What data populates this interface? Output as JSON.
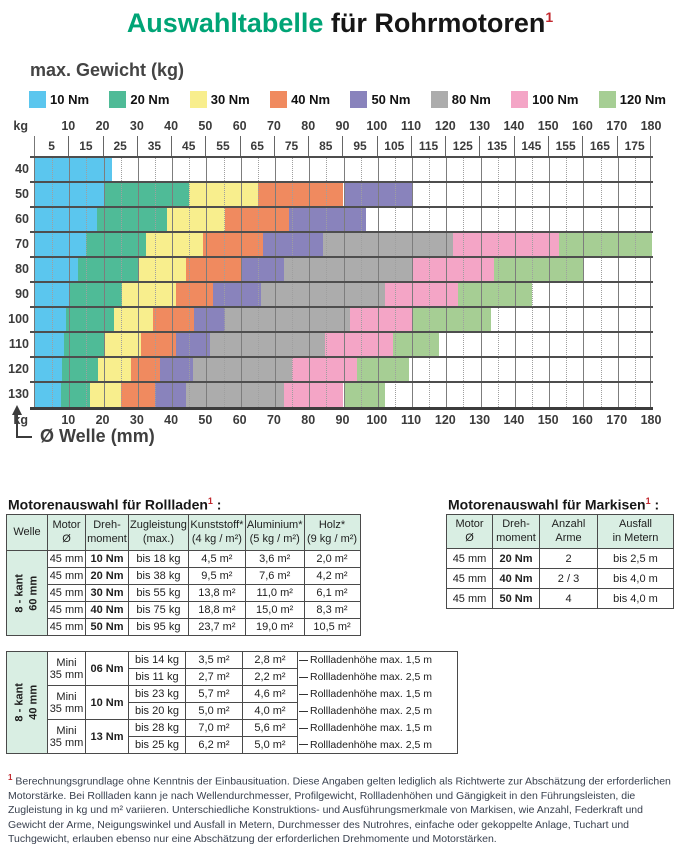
{
  "title": {
    "part1": "Auswahltabelle",
    "part2": " für Rohrmotoren",
    "footnote_mark": "1"
  },
  "subtitle": "max. Gewicht (kg)",
  "legend": [
    {
      "label": "10 Nm",
      "color": "#5bc6ee"
    },
    {
      "label": "20 Nm",
      "color": "#4fbb97"
    },
    {
      "label": "30 Nm",
      "color": "#f8ee8d"
    },
    {
      "label": "40 Nm",
      "color": "#f08a5f"
    },
    {
      "label": "50 Nm",
      "color": "#8983bc"
    },
    {
      "label": "80 Nm",
      "color": "#acacac"
    },
    {
      "label": "100 Nm",
      "color": "#f4a5c6"
    },
    {
      "label": "120 Nm",
      "color": "#a6ce94"
    }
  ],
  "chart_data": {
    "type": "heatmap",
    "description": "Max weight (kg) versus shaft diameter; colored bands give required motor torque",
    "x_axis": {
      "corner_label": "kg",
      "unit_label": "Ø Welle (mm)",
      "range": [
        0,
        180
      ],
      "ticks_major": [
        10,
        20,
        30,
        40,
        50,
        60,
        70,
        80,
        90,
        100,
        110,
        120,
        130,
        140,
        150,
        160,
        170,
        180
      ],
      "ticks_minor": [
        5,
        15,
        25,
        35,
        45,
        55,
        65,
        75,
        85,
        95,
        105,
        115,
        125,
        135,
        145,
        155,
        165,
        175
      ]
    },
    "y_axis": {
      "unit": "kg",
      "categories": [
        40,
        50,
        60,
        70,
        80,
        90,
        100,
        110,
        120,
        130
      ]
    },
    "torque_colors": {
      "10 Nm": "#5bc6ee",
      "20 Nm": "#4fbb97",
      "30 Nm": "#f8ee8d",
      "40 Nm": "#f08a5f",
      "50 Nm": "#8983bc",
      "80 Nm": "#acacac",
      "100 Nm": "#f4a5c6",
      "120 Nm": "#a6ce94"
    },
    "rows": [
      {
        "kg": 40,
        "segments": [
          {
            "torque": "10 Nm",
            "to": 22.5
          }
        ]
      },
      {
        "kg": 50,
        "segments": [
          {
            "torque": "10 Nm",
            "to": 20
          },
          {
            "torque": "20 Nm",
            "to": 45
          },
          {
            "torque": "30 Nm",
            "to": 65
          },
          {
            "torque": "40 Nm",
            "to": 90
          },
          {
            "torque": "50 Nm",
            "to": 110
          }
        ]
      },
      {
        "kg": 60,
        "segments": [
          {
            "torque": "10 Nm",
            "to": 18
          },
          {
            "torque": "20 Nm",
            "to": 38.5
          },
          {
            "torque": "30 Nm",
            "to": 55.5
          },
          {
            "torque": "40 Nm",
            "to": 74
          },
          {
            "torque": "50 Nm",
            "to": 96.5
          }
        ]
      },
      {
        "kg": 70,
        "segments": [
          {
            "torque": "10 Nm",
            "to": 15
          },
          {
            "torque": "20 Nm",
            "to": 32.5
          },
          {
            "torque": "30 Nm",
            "to": 49
          },
          {
            "torque": "40 Nm",
            "to": 66.5
          },
          {
            "torque": "50 Nm",
            "to": 84
          },
          {
            "torque": "80 Nm",
            "to": 122
          },
          {
            "torque": "100 Nm",
            "to": 153
          },
          {
            "torque": "120 Nm",
            "to": 180
          }
        ]
      },
      {
        "kg": 80,
        "segments": [
          {
            "torque": "10 Nm",
            "to": 12.5
          },
          {
            "torque": "20 Nm",
            "to": 30
          },
          {
            "torque": "30 Nm",
            "to": 44
          },
          {
            "torque": "40 Nm",
            "to": 60
          },
          {
            "torque": "50 Nm",
            "to": 72.5
          },
          {
            "torque": "80 Nm",
            "to": 110
          },
          {
            "torque": "100 Nm",
            "to": 134
          },
          {
            "torque": "120 Nm",
            "to": 160
          }
        ]
      },
      {
        "kg": 90,
        "segments": [
          {
            "torque": "10 Nm",
            "to": 10
          },
          {
            "torque": "20 Nm",
            "to": 25.5
          },
          {
            "torque": "30 Nm",
            "to": 41
          },
          {
            "torque": "40 Nm",
            "to": 52
          },
          {
            "torque": "50 Nm",
            "to": 66
          },
          {
            "torque": "80 Nm",
            "to": 102
          },
          {
            "torque": "100 Nm",
            "to": 123.5
          },
          {
            "torque": "120 Nm",
            "to": 145
          }
        ]
      },
      {
        "kg": 100,
        "segments": [
          {
            "torque": "10 Nm",
            "to": 9
          },
          {
            "torque": "20 Nm",
            "to": 23
          },
          {
            "torque": "30 Nm",
            "to": 34.5
          },
          {
            "torque": "40 Nm",
            "to": 46.5
          },
          {
            "torque": "50 Nm",
            "to": 55.5
          },
          {
            "torque": "80 Nm",
            "to": 92
          },
          {
            "torque": "100 Nm",
            "to": 110
          },
          {
            "torque": "120 Nm",
            "to": 133
          }
        ]
      },
      {
        "kg": 110,
        "segments": [
          {
            "torque": "10 Nm",
            "to": 8.5
          },
          {
            "torque": "20 Nm",
            "to": 20.5
          },
          {
            "torque": "30 Nm",
            "to": 31
          },
          {
            "torque": "40 Nm",
            "to": 41
          },
          {
            "torque": "50 Nm",
            "to": 51
          },
          {
            "torque": "80 Nm",
            "to": 84.5
          },
          {
            "torque": "100 Nm",
            "to": 104.5
          },
          {
            "torque": "120 Nm",
            "to": 118
          }
        ]
      },
      {
        "kg": 120,
        "segments": [
          {
            "torque": "10 Nm",
            "to": 8
          },
          {
            "torque": "20 Nm",
            "to": 18.5
          },
          {
            "torque": "30 Nm",
            "to": 28
          },
          {
            "torque": "40 Nm",
            "to": 36.5
          },
          {
            "torque": "50 Nm",
            "to": 46
          },
          {
            "torque": "80 Nm",
            "to": 75
          },
          {
            "torque": "100 Nm",
            "to": 94
          },
          {
            "torque": "120 Nm",
            "to": 109
          }
        ]
      },
      {
        "kg": 130,
        "segments": [
          {
            "torque": "10 Nm",
            "to": 7.5
          },
          {
            "torque": "20 Nm",
            "to": 16
          },
          {
            "torque": "30 Nm",
            "to": 25
          },
          {
            "torque": "40 Nm",
            "to": 35
          },
          {
            "torque": "50 Nm",
            "to": 44
          },
          {
            "torque": "80 Nm",
            "to": 72.5
          },
          {
            "torque": "100 Nm",
            "to": 90
          },
          {
            "torque": "120 Nm",
            "to": 102
          }
        ]
      }
    ]
  },
  "table_rollladen": {
    "title": "Motorenauswahl für Rollladen",
    "footnote_mark": "1",
    "title_suffix": " :",
    "headers": [
      [
        "Welle"
      ],
      [
        "Motor",
        "Ø"
      ],
      [
        "Dreh-",
        "moment"
      ],
      [
        "Zugleistung",
        "(max.)"
      ],
      [
        "Kunststoff*",
        "(4 kg / m²)"
      ],
      [
        "Aluminium*",
        "(5 kg / m²)"
      ],
      [
        "Holz*",
        "(9 kg / m²)"
      ]
    ],
    "group1": {
      "welle": [
        "8 - kant",
        "60 mm"
      ],
      "rows": [
        [
          "45 mm",
          "10 Nm",
          "bis 18 kg",
          "4,5 m²",
          "3,6 m²",
          "2,0 m²"
        ],
        [
          "45 mm",
          "20 Nm",
          "bis 38 kg",
          "9,5 m²",
          "7,6 m²",
          "4,2 m²"
        ],
        [
          "45 mm",
          "30 Nm",
          "bis 55 kg",
          "13,8 m²",
          "11,0 m²",
          "6,1 m²"
        ],
        [
          "45 mm",
          "40 Nm",
          "bis 75 kg",
          "18,8 m²",
          "15,0 m²",
          "8,3 m²"
        ],
        [
          "45 mm",
          "50 Nm",
          "bis 95 kg",
          "23,7 m²",
          "19,0 m²",
          "10,5 m²"
        ]
      ]
    },
    "group2": {
      "welle": [
        "8 - kant",
        "40 mm"
      ],
      "subgroups": [
        {
          "motor": [
            "Mini",
            "35 mm"
          ],
          "torque": "06 Nm",
          "rows": [
            [
              "bis 14 kg",
              "3,5 m²",
              "2,8 m²",
              "Rollladenhöhe max. 1,5 m"
            ],
            [
              "bis 11 kg",
              "2,7 m²",
              "2,2 m²",
              "Rollladenhöhe max. 2,5 m"
            ]
          ]
        },
        {
          "motor": [
            "Mini",
            "35 mm"
          ],
          "torque": "10 Nm",
          "rows": [
            [
              "bis 23 kg",
              "5,7 m²",
              "4,6 m²",
              "Rollladenhöhe max. 1,5 m"
            ],
            [
              "bis 20 kg",
              "5,0 m²",
              "4,0 m²",
              "Rollladenhöhe max. 2,5 m"
            ]
          ]
        },
        {
          "motor": [
            "Mini",
            "35 mm"
          ],
          "torque": "13 Nm",
          "rows": [
            [
              "bis 28 kg",
              "7,0 m²",
              "5,6 m²",
              "Rollladenhöhe max. 1,5 m"
            ],
            [
              "bis 25 kg",
              "6,2 m²",
              "5,0 m²",
              "Rollladenhöhe max. 2,5 m"
            ]
          ]
        }
      ]
    }
  },
  "table_markisen": {
    "title": "Motorenauswahl für Markisen",
    "footnote_mark": "1",
    "title_suffix": " :",
    "headers": [
      [
        "Motor",
        "Ø"
      ],
      [
        "Dreh-",
        "moment"
      ],
      [
        "Anzahl",
        "Arme"
      ],
      [
        "Ausfall",
        "in Metern"
      ]
    ],
    "rows": [
      [
        "45 mm",
        "20 Nm",
        "2",
        "bis 2,5 m"
      ],
      [
        "45 mm",
        "40 Nm",
        "2 / 3",
        "bis 4,0 m"
      ],
      [
        "45 mm",
        "50 Nm",
        "4",
        "bis 4,0 m"
      ]
    ]
  },
  "footnote": {
    "mark": "1",
    "text": "Berechnungsgrundlage ohne Kenntnis der Einbausituation. Diese Angaben gelten lediglich als Richtwerte zur Abschätzung der erforderlichen Motorstärke. Bei Rollladen kann je nach Wellendurchmesser, Profilgewicht, Rollladenhöhen und Gängigkeit in den Führungsleisten, die Zugleistung in kg und m² variieren. Unterschiedliche Konstruktions- und Ausführungsmerkmale von Markisen, wie Anzahl, Federkraft und Gewicht der Arme, Neigungswinkel und Ausfall in Metern, Durchmesser des Nutrohres, einfache oder gekoppelte Anlage, Tuchart und Tuchgewicht, erlauben ebenso nur eine Abschätzung der erforderlichen Drehmomente und Motorstärken."
  }
}
